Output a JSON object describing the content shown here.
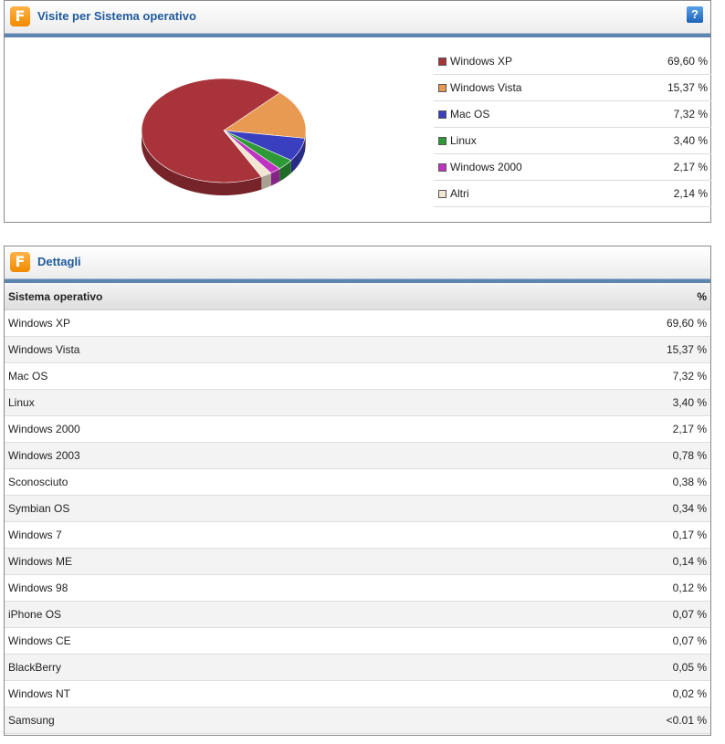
{
  "chart_panel": {
    "title": "Visite per Sistema operativo",
    "help_label": "?",
    "logo_label": "F"
  },
  "chart_data": {
    "type": "pie",
    "title": "Visite per Sistema operativo",
    "slices": [
      {
        "label": "Windows XP",
        "value": 69.6,
        "display": "69,60 %",
        "color": "#a8333a"
      },
      {
        "label": "Windows Vista",
        "value": 15.37,
        "display": "15,37 %",
        "color": "#e89a52"
      },
      {
        "label": "Mac OS",
        "value": 7.32,
        "display": "7,32 %",
        "color": "#3a3fbf"
      },
      {
        "label": "Linux",
        "value": 3.4,
        "display": "3,40 %",
        "color": "#2e9a36"
      },
      {
        "label": "Windows 2000",
        "value": 2.17,
        "display": "2,17 %",
        "color": "#c033c0"
      },
      {
        "label": "Altri",
        "value": 2.14,
        "display": "2,14 %",
        "color": "#f0e6d2"
      }
    ],
    "legend_position": "right"
  },
  "detail_panel": {
    "title": "Dettagli",
    "logo_label": "F",
    "columns": [
      "Sistema operativo",
      "%"
    ],
    "rows": [
      {
        "os": "Windows XP",
        "pct": "69,60 %"
      },
      {
        "os": "Windows Vista",
        "pct": "15,37 %"
      },
      {
        "os": "Mac OS",
        "pct": "7,32 %"
      },
      {
        "os": "Linux",
        "pct": "3,40 %"
      },
      {
        "os": "Windows 2000",
        "pct": "2,17 %"
      },
      {
        "os": "Windows 2003",
        "pct": "0,78 %"
      },
      {
        "os": "Sconosciuto",
        "pct": "0,38 %"
      },
      {
        "os": "Symbian OS",
        "pct": "0,34 %"
      },
      {
        "os": "Windows 7",
        "pct": "0,17 %"
      },
      {
        "os": "Windows ME",
        "pct": "0,14 %"
      },
      {
        "os": "Windows 98",
        "pct": "0,12 %"
      },
      {
        "os": "iPhone OS",
        "pct": "0,07 %"
      },
      {
        "os": "Windows CE",
        "pct": "0,07 %"
      },
      {
        "os": "BlackBerry",
        "pct": "0,05 %"
      },
      {
        "os": "Windows NT",
        "pct": "0,02 %"
      },
      {
        "os": "Samsung",
        "pct": "<0.01 %"
      }
    ]
  }
}
